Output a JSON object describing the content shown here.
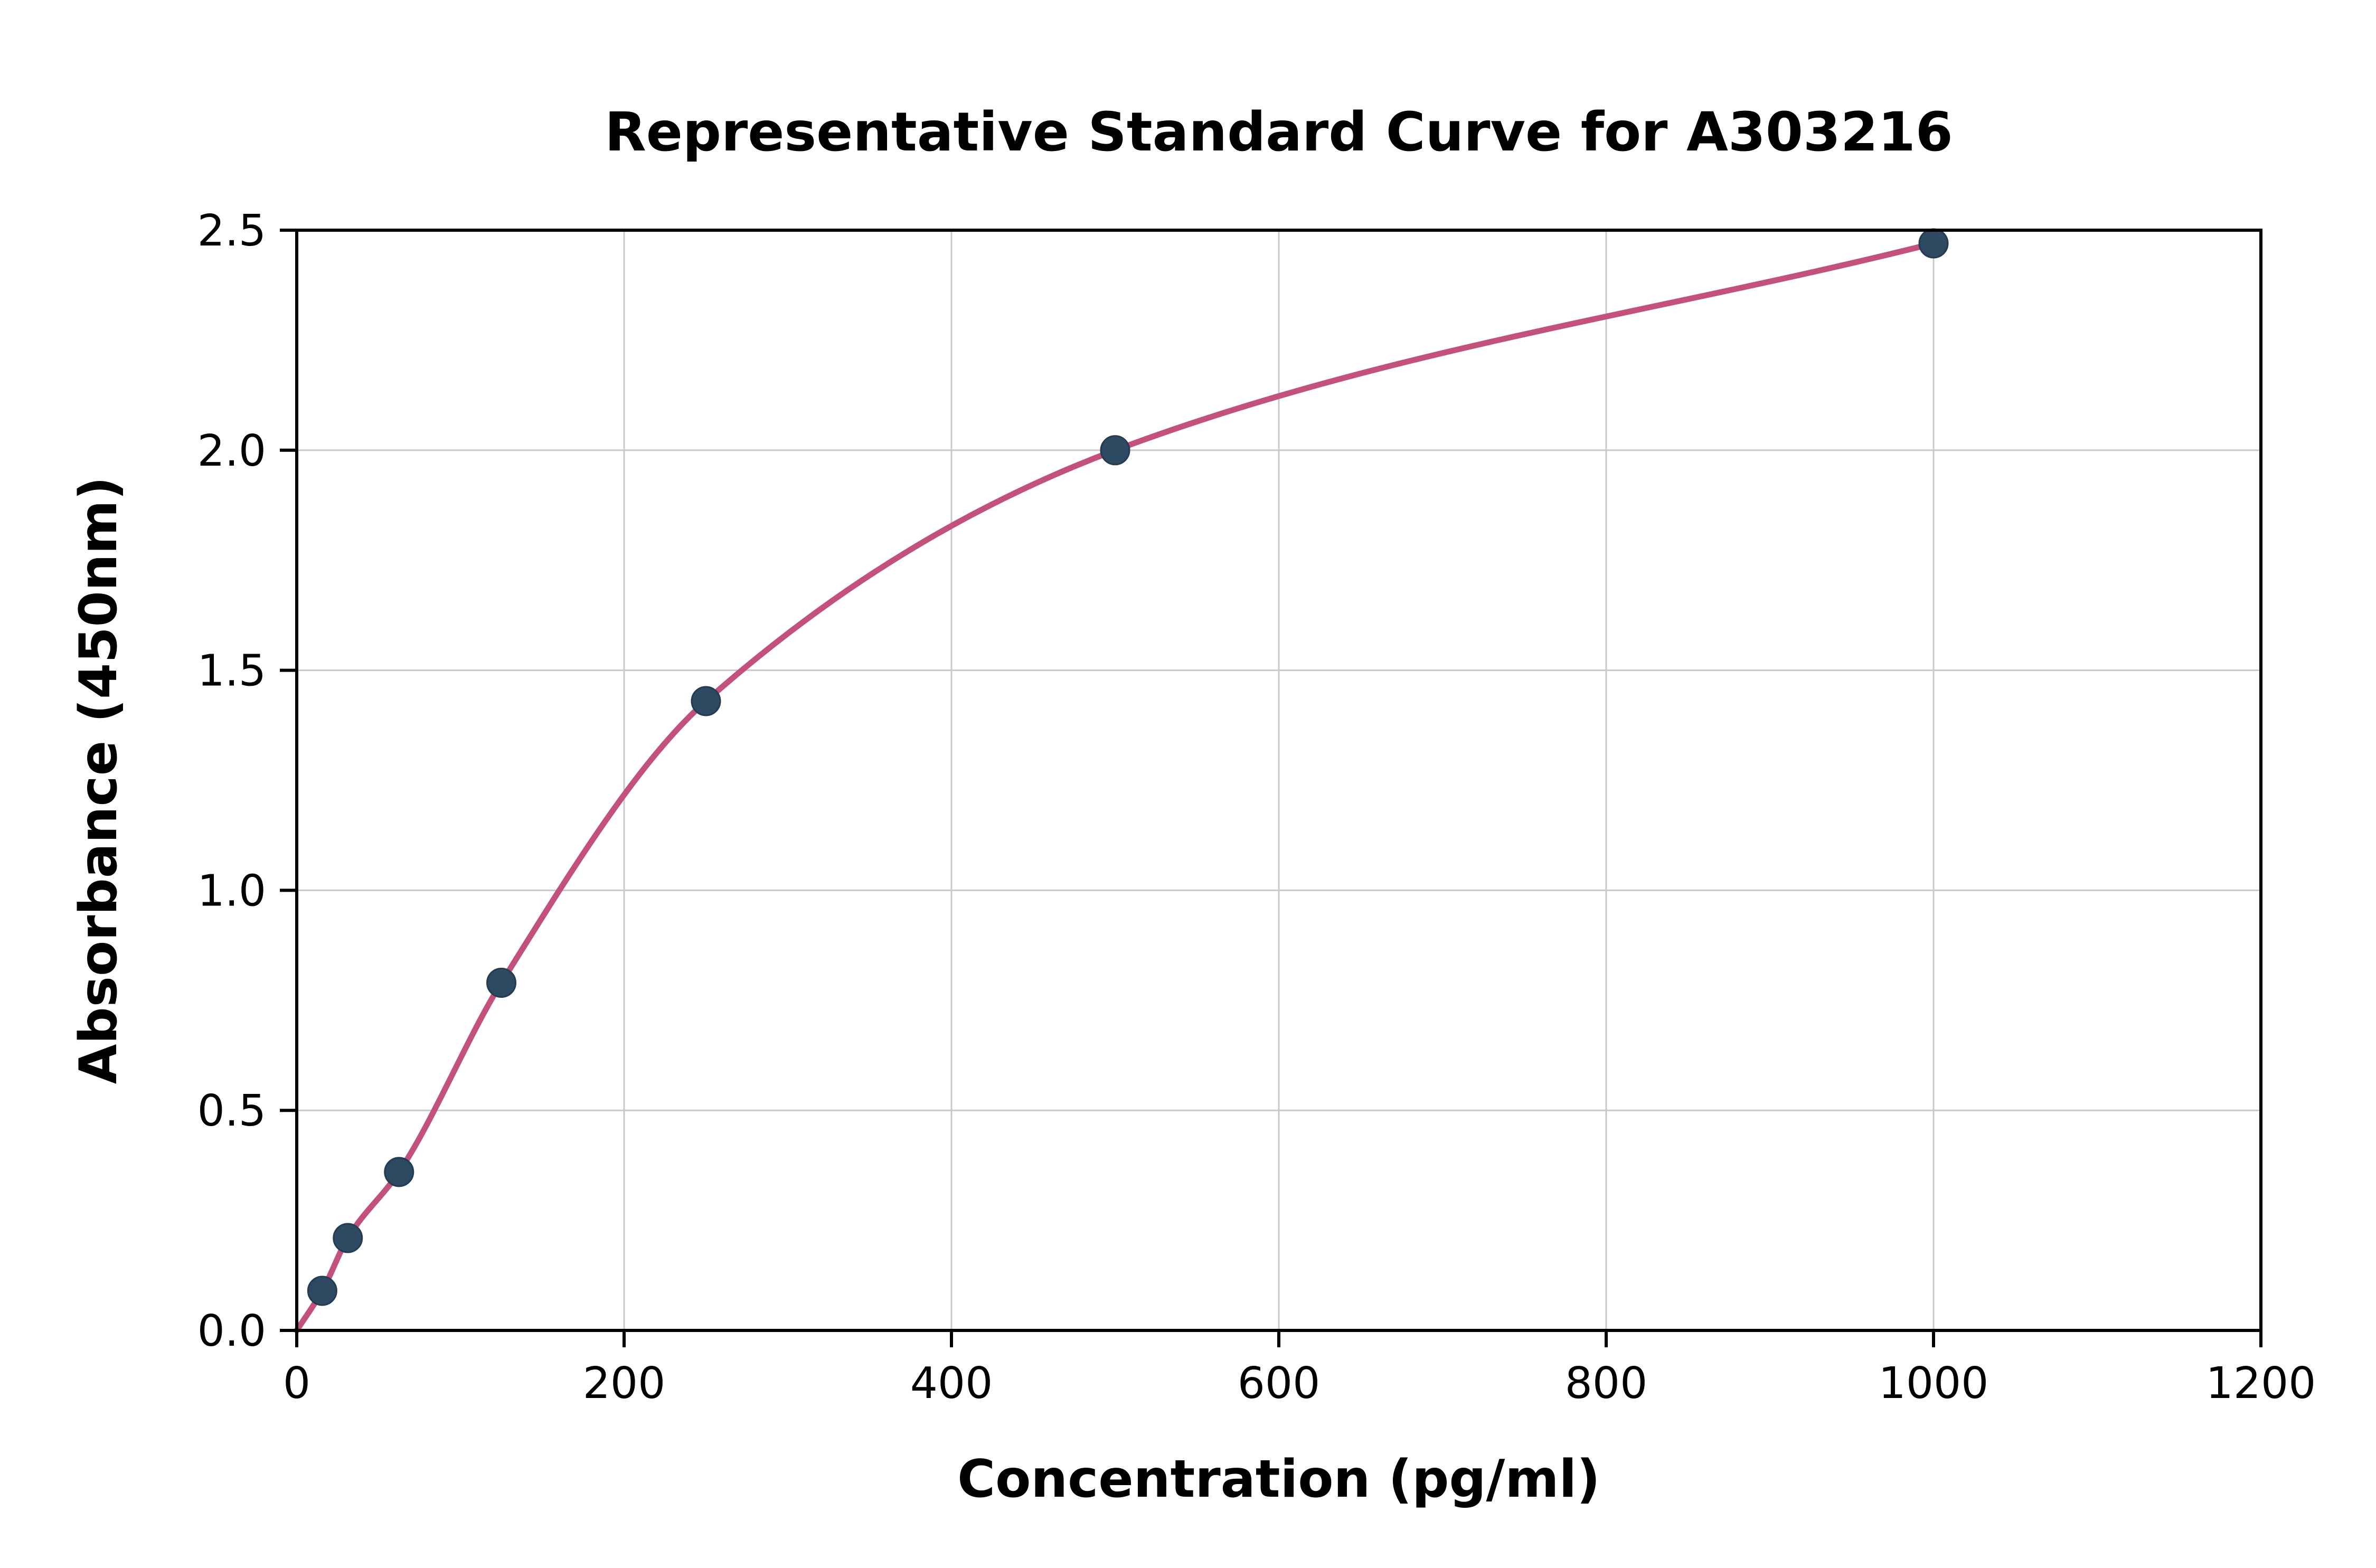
{
  "chart_data": {
    "type": "scatter",
    "title": "Representative Standard Curve for A303216",
    "xlabel": "Concentration (pg/ml)",
    "ylabel": "Absorbance (450nm)",
    "xlim": [
      0,
      1200
    ],
    "ylim": [
      0,
      2.5
    ],
    "x_ticks": [
      0,
      200,
      400,
      600,
      800,
      1000,
      1200
    ],
    "x_tick_labels": [
      "0",
      "200",
      "400",
      "600",
      "800",
      "1000",
      "1200"
    ],
    "y_ticks": [
      0,
      0.5,
      1.0,
      1.5,
      2.0,
      2.5
    ],
    "y_tick_labels": [
      "0.0",
      "0.5",
      "1.0",
      "1.5",
      "2.0",
      "2.5"
    ],
    "points": [
      [
        15.6,
        0.09
      ],
      [
        31.2,
        0.21
      ],
      [
        62.5,
        0.36
      ],
      [
        125,
        0.79
      ],
      [
        250,
        1.43
      ],
      [
        500,
        2.0
      ],
      [
        1000,
        2.47
      ]
    ],
    "curve_start": [
      0,
      0.0
    ],
    "grid": true,
    "legend": "none",
    "colors": {
      "curve": "#c2527d",
      "point": "#2e4a63",
      "grid": "#c9c9c9",
      "axis": "#000000",
      "background": "#ffffff"
    }
  }
}
